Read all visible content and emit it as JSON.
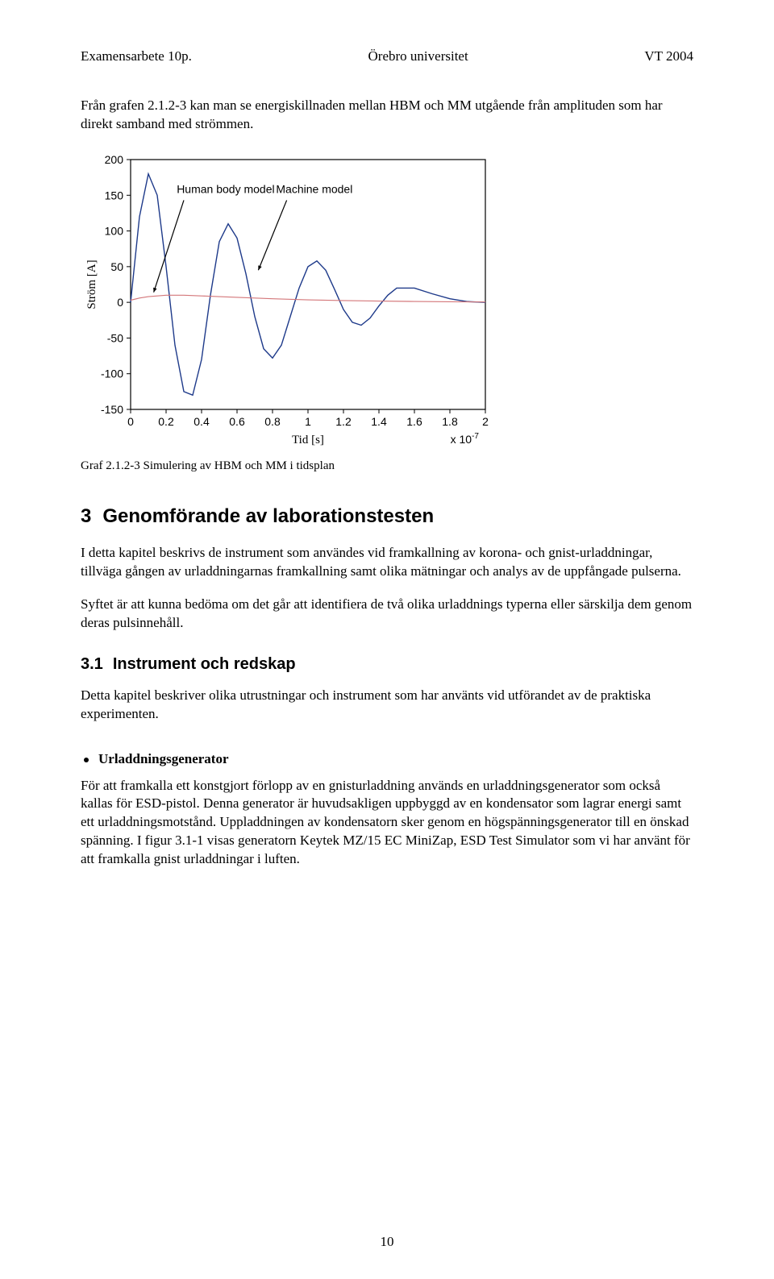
{
  "header": {
    "left": "Examensarbete 10p.",
    "center": "Örebro universitet",
    "right": "VT 2004"
  },
  "intro_para": "Från grafen 2.1.2-3 kan man se energiskillnaden mellan HBM och MM utgående från amplituden som har direkt samband med strömmen.",
  "chart": {
    "type": "line",
    "hbm_label": "Human body model",
    "mm_label": "Machine model",
    "hbm_color": "#d4777a",
    "mm_color": "#1e3a8a",
    "background_color": "#ffffff",
    "axis_color": "#000000",
    "xlim": [
      0,
      2
    ],
    "ylim": [
      -150,
      200
    ],
    "xticks": [
      0,
      0.2,
      0.4,
      0.6,
      0.8,
      1,
      1.2,
      1.4,
      1.6,
      1.8,
      2
    ],
    "yticks": [
      -150,
      -100,
      -50,
      0,
      50,
      100,
      150,
      200
    ],
    "xlabel": "Tid [s]",
    "ylabel": "Ström [A]",
    "x_scale_annot": "x 10",
    "x_scale_exp": "-7",
    "hbm_x": [
      0,
      0.05,
      0.1,
      0.15,
      0.2,
      0.3,
      0.4,
      0.5,
      0.6,
      0.8,
      1.0,
      1.2,
      1.4,
      1.6,
      1.8,
      2.0
    ],
    "hbm_y": [
      3,
      6,
      8,
      9,
      10,
      10,
      9,
      8,
      7,
      5,
      3.5,
      2.5,
      1.8,
      1.2,
      0.8,
      0.5
    ],
    "mm_x": [
      0,
      0.05,
      0.1,
      0.15,
      0.2,
      0.25,
      0.3,
      0.35,
      0.4,
      0.45,
      0.5,
      0.55,
      0.6,
      0.65,
      0.7,
      0.75,
      0.8,
      0.85,
      0.9,
      0.95,
      1.0,
      1.05,
      1.1,
      1.15,
      1.2,
      1.25,
      1.3,
      1.35,
      1.4,
      1.45,
      1.5,
      1.6,
      1.7,
      1.8,
      1.9,
      2.0
    ],
    "mm_y": [
      0,
      120,
      180,
      150,
      50,
      -60,
      -125,
      -130,
      -80,
      10,
      85,
      110,
      90,
      40,
      -20,
      -65,
      -78,
      -60,
      -20,
      20,
      50,
      58,
      45,
      18,
      -10,
      -28,
      -32,
      -22,
      -5,
      10,
      20,
      20,
      12,
      5,
      1,
      0
    ]
  },
  "graf_caption": "Graf 2.1.2-3 Simulering av HBM och MM i tidsplan",
  "section3": {
    "num": "3",
    "title": "Genomförande av laborationstesten",
    "para1": "I detta kapitel beskrivs de instrument som användes vid framkallning av korona- och gnist-urladdningar, tillväga gången av urladdningarnas framkallning samt olika mätningar och analys av de uppfångade pulserna.",
    "para2": "Syftet är att kunna bedöma om det går att identifiera de två olika urladdnings typerna eller särskilja dem genom deras pulsinnehåll."
  },
  "section31": {
    "num": "3.1",
    "title": "Instrument och redskap",
    "para": "Detta kapitel beskriver olika utrustningar och instrument som har använts vid utförandet av de praktiska experimenten."
  },
  "bullet": {
    "title": "Urladdningsgenerator",
    "para": "För att framkalla ett konstgjort förlopp av en gnisturladdning används en urladdningsgenerator som också kallas för ESD-pistol. Denna generator är huvudsakligen uppbyggd av en kondensator som lagrar energi samt ett urladdningsmotstånd. Uppladdningen av kondensatorn sker genom en högspänningsgenerator till en önskad spänning. I figur 3.1-1 visas generatorn Keytek MZ/15 EC MiniZap, ESD Test Simulator som vi har använt för att framkalla gnist urladdningar i luften."
  },
  "page_number": "10"
}
